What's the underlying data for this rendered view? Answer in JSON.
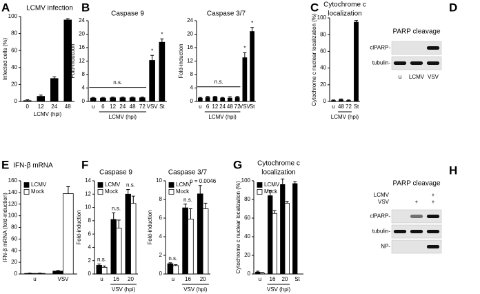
{
  "chart_data": [
    {
      "type": "bar",
      "panel": "A",
      "title": "LCMV infection",
      "ylabel": "Infected cells (%)",
      "xlabel": "LCMV (hpi)",
      "categories": [
        "0",
        "12",
        "24",
        "48"
      ],
      "values": [
        1,
        6,
        27,
        96
      ],
      "errors": [
        1,
        1.5,
        2,
        1.5
      ],
      "color": "#000000",
      "ylim": [
        0,
        100
      ],
      "yticks": [
        0,
        20,
        40,
        60,
        80,
        100
      ]
    },
    {
      "type": "bar",
      "panel": "B",
      "title": "Caspase 9",
      "ylabel": "Fold-induction",
      "xlabel": "LCMV (hpi)",
      "xlabel_span": [
        "6",
        "72"
      ],
      "categories": [
        "u",
        "6",
        "12",
        "24",
        "48",
        "72",
        "VSV",
        "St"
      ],
      "values": [
        1,
        1,
        1.1,
        1.1,
        1.1,
        1.1,
        12.2,
        17.6
      ],
      "errors": [
        0.2,
        0.2,
        0.2,
        0.2,
        0.2,
        0.2,
        1.5,
        1
      ],
      "color": "#000000",
      "ylim": [
        0,
        24
      ],
      "yticks": [
        0,
        4,
        8,
        12,
        16,
        20,
        24
      ],
      "annotations": [
        {
          "text": "n.s.",
          "span": [
            "u",
            "72"
          ]
        },
        {
          "text": "*",
          "category": "VSV"
        },
        {
          "text": "*",
          "category": "St"
        }
      ]
    },
    {
      "type": "bar",
      "title": "Caspase 3/7",
      "ylabel": "Fold-induction",
      "xlabel": "LCMV (hpi)",
      "xlabel_span": [
        "6",
        "72"
      ],
      "categories": [
        "u",
        "6",
        "12",
        "24",
        "48",
        "72",
        "VSV",
        "St"
      ],
      "values": [
        1,
        1.2,
        1.3,
        1,
        1,
        1.2,
        13,
        20.8
      ],
      "errors": [
        0.2,
        0.3,
        0.2,
        0.2,
        0.4,
        0.3,
        1.5,
        1.2
      ],
      "color": "#000000",
      "ylim": [
        0,
        24
      ],
      "yticks": [
        0,
        4,
        8,
        12,
        16,
        20,
        24
      ],
      "annotations": [
        {
          "text": "n.s.",
          "span": [
            "u",
            "72"
          ]
        },
        {
          "text": "*",
          "category": "VSV"
        },
        {
          "text": "*",
          "category": "St"
        }
      ]
    },
    {
      "type": "bar",
      "panel": "C",
      "title": [
        "Cytochrome c",
        "localization"
      ],
      "ylabel": "Cytochrome c nuclear localization (%)",
      "xlabel": "LCMV (hpi)",
      "xlabel_span": [
        "48",
        "72"
      ],
      "categories": [
        "u",
        "48",
        "72",
        "St"
      ],
      "values": [
        1,
        2,
        1,
        95
      ],
      "errors": [
        0.8,
        1,
        0.8,
        2
      ],
      "color": "#000000",
      "ylim": [
        0,
        100
      ],
      "yticks": [
        0,
        20,
        40,
        60,
        80,
        100
      ]
    },
    {
      "type": "blot",
      "panel": "D",
      "title": "PARP cleavage",
      "rows": [
        "clPARP-",
        "tubulin-"
      ],
      "lanes": [
        "u",
        "LCMV",
        "VSV"
      ]
    },
    {
      "type": "bar",
      "panel": "E",
      "title": "IFN-β mRNA",
      "ylabel": "IFN-β mRNA (fold-induction)",
      "categories": [
        "u",
        "VSV"
      ],
      "legend": "top-left",
      "series": [
        {
          "name": "LCMV",
          "color": "#000000",
          "values": [
            1,
            5
          ],
          "errors": [
            0.5,
            1
          ]
        },
        {
          "name": "Mock",
          "color": "#ffffff",
          "values": [
            1,
            138
          ],
          "errors": [
            0.5,
            12
          ]
        }
      ],
      "ylim": [
        0,
        160
      ],
      "yticks": [
        0,
        20,
        40,
        60,
        80,
        100,
        120,
        140,
        160
      ]
    },
    {
      "type": "bar",
      "panel": "F",
      "title": "Caspase 9",
      "ylabel": "Fold-induction",
      "xlabel": "VSV (hpi)",
      "xlabel_span": [
        "16",
        "20"
      ],
      "categories": [
        "u",
        "16",
        "20"
      ],
      "legend": "top-left",
      "series": [
        {
          "name": "LCMV",
          "color": "#000000",
          "values": [
            1.3,
            8.2,
            12
          ],
          "errors": [
            0.2,
            1,
            0.7
          ]
        },
        {
          "name": "Mock",
          "color": "#ffffff",
          "values": [
            1,
            6.9,
            10.6
          ],
          "errors": [
            0.2,
            1.2,
            1.1
          ]
        }
      ],
      "ylim": [
        0,
        14
      ],
      "yticks": [
        0,
        2,
        4,
        6,
        8,
        10,
        12,
        14
      ],
      "annotations": [
        {
          "text": "n.s.",
          "category": "u"
        },
        {
          "text": "n.s.",
          "category": "16"
        },
        {
          "text": "n.s.",
          "category": "20"
        }
      ]
    },
    {
      "type": "bar",
      "title": "Caspase 3/7",
      "ylabel": "Fold-induction",
      "xlabel": "VSV (hpi)",
      "xlabel_span": [
        "16",
        "20"
      ],
      "categories": [
        "u",
        "16",
        "20"
      ],
      "legend": "top-left",
      "series": [
        {
          "name": "LCMV",
          "color": "#000000",
          "values": [
            1.1,
            7.1,
            8.6
          ],
          "errors": [
            0.1,
            0.4,
            0.9
          ]
        },
        {
          "name": "Mock",
          "color": "#ffffff",
          "values": [
            0.9,
            5.9,
            7
          ],
          "errors": [
            0.1,
            1.1,
            0.6
          ]
        }
      ],
      "ylim": [
        0,
        10
      ],
      "yticks": [
        0,
        2,
        4,
        6,
        8,
        10
      ],
      "annotations": [
        {
          "text": "n.s.",
          "category": "u"
        },
        {
          "text": "n.s.",
          "category": "16"
        },
        {
          "text": "p = 0.0046",
          "category": "20"
        }
      ]
    },
    {
      "type": "bar",
      "panel": "G",
      "title": [
        "Cytochrome c",
        "localization"
      ],
      "ylabel": "Cytochrome c nuclear localization (%)",
      "xlabel": "VSV (hpi)",
      "xlabel_span": [
        "16",
        "20"
      ],
      "categories": [
        "u",
        "16",
        "20",
        "St"
      ],
      "legend": "top-left",
      "series": [
        {
          "name": "LCMV",
          "color": "#000000",
          "values": [
            2,
            84,
            96,
            97
          ],
          "errors": [
            1,
            6,
            6,
            2
          ]
        },
        {
          "name": "Mock",
          "color": "#ffffff",
          "values": [
            1,
            65,
            76,
            null
          ],
          "errors": [
            0.5,
            3,
            2,
            null
          ]
        }
      ],
      "ylim": [
        0,
        100
      ],
      "yticks": [
        0,
        20,
        40,
        60,
        80,
        100
      ]
    },
    {
      "type": "blot",
      "panel": "H",
      "title": "PARP cleavage",
      "rows": [
        "clPARP-",
        "tubulin-",
        "NP-"
      ],
      "conditions": [
        {
          "name": "LCMV",
          "marks": [
            null,
            null,
            "+"
          ]
        },
        {
          "name": "VSV",
          "marks": [
            null,
            "+",
            "+"
          ]
        }
      ]
    }
  ]
}
